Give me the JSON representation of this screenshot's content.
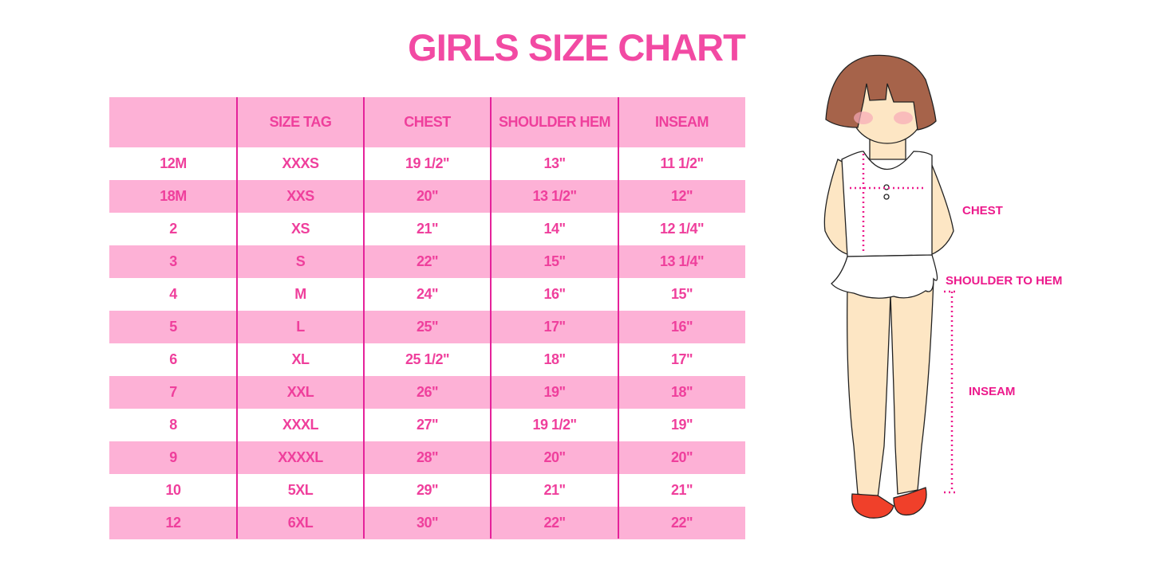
{
  "title": "GIRLS SIZE CHART",
  "table": {
    "headers": [
      "",
      "SIZE TAG",
      "CHEST",
      "SHOULDER HEM",
      "INSEAM"
    ],
    "rows": [
      [
        "12M",
        "XXXS",
        "19 1/2\"",
        "13\"",
        "11 1/2\""
      ],
      [
        "18M",
        "XXS",
        "20\"",
        "13 1/2\"",
        "12\""
      ],
      [
        "2",
        "XS",
        "21\"",
        "14\"",
        "12 1/4\""
      ],
      [
        "3",
        "S",
        "22\"",
        "15\"",
        "13 1/4\""
      ],
      [
        "4",
        "M",
        "24\"",
        "16\"",
        "15\""
      ],
      [
        "5",
        "L",
        "25\"",
        "17\"",
        "16\""
      ],
      [
        "6",
        "XL",
        "25 1/2\"",
        "18\"",
        "17\""
      ],
      [
        "7",
        "XXL",
        "26\"",
        "19\"",
        "18\""
      ],
      [
        "8",
        "XXXL",
        "27\"",
        "19 1/2\"",
        "19\""
      ],
      [
        "9",
        "XXXXL",
        "28\"",
        "20\"",
        "20\""
      ],
      [
        "10",
        "5XL",
        "29\"",
        "21\"",
        "21\""
      ],
      [
        "12",
        "6XL",
        "30\"",
        "22\"",
        "22\""
      ]
    ]
  },
  "figure": {
    "labels": {
      "chest": "CHEST",
      "shoulder": "SHOULDER TO HEM",
      "inseam": "INSEAM"
    }
  },
  "colors": {
    "accent": "#ef3f9c",
    "row_pink": "#fdb1d6",
    "divider": "#e5229a"
  }
}
